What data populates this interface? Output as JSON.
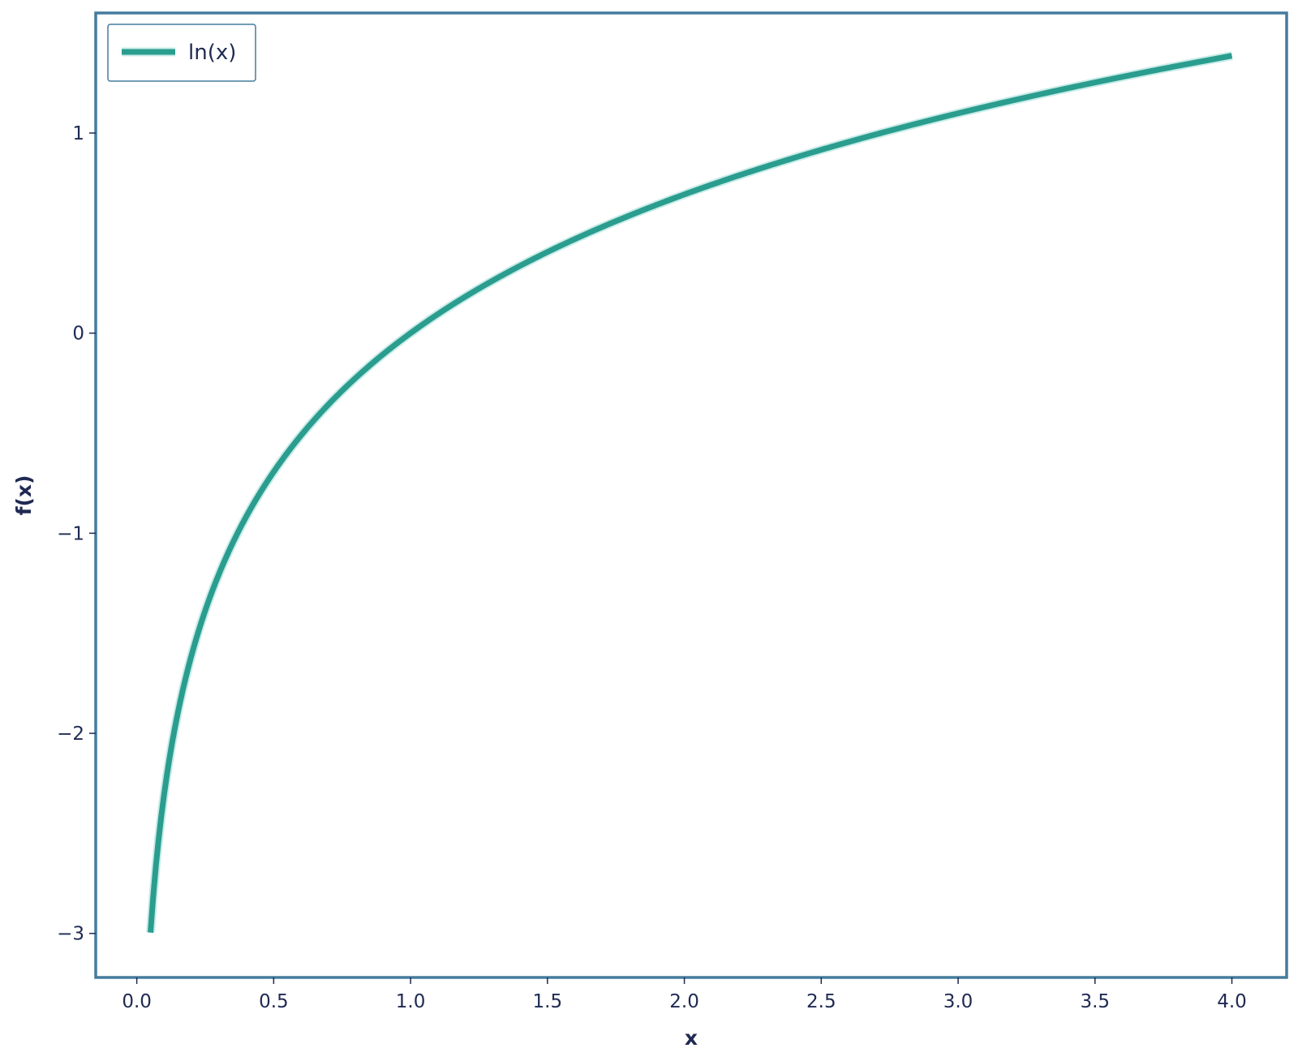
{
  "chart_data": {
    "type": "line",
    "title": "",
    "xlabel": "x",
    "ylabel": "f(x)",
    "xlim": [
      -0.15,
      4.2
    ],
    "ylim": [
      -3.22,
      1.6
    ],
    "x_ticks": [
      0.0,
      0.5,
      1.0,
      1.5,
      2.0,
      2.5,
      3.0,
      3.5,
      4.0
    ],
    "x_tick_labels": [
      "0.0",
      "0.5",
      "1.0",
      "1.5",
      "2.0",
      "2.5",
      "3.0",
      "3.5",
      "4.0"
    ],
    "y_ticks": [
      -3,
      -2,
      -1,
      0,
      1
    ],
    "y_tick_labels": [
      "−3",
      "−2",
      "−1",
      "0",
      "1"
    ],
    "grid": false,
    "legend_position": "top-left",
    "series": [
      {
        "name": "ln(x)",
        "color": "#2a9d8f",
        "function": "ln",
        "x_start": 0.05,
        "x_end": 4.0,
        "x": [
          0.05,
          0.1,
          0.2,
          0.3,
          0.5,
          0.75,
          1.0,
          1.5,
          2.0,
          2.5,
          3.0,
          3.5,
          4.0
        ],
        "y": [
          -3.0,
          -2.3,
          -1.61,
          -1.2,
          -0.69,
          -0.29,
          0.0,
          0.41,
          0.69,
          0.92,
          1.1,
          1.25,
          1.39
        ]
      }
    ],
    "colors": {
      "frame": "#457b9d",
      "text": "#1f2a52",
      "line": "#2a9d8f",
      "line_halo": "#c9ece8"
    }
  }
}
